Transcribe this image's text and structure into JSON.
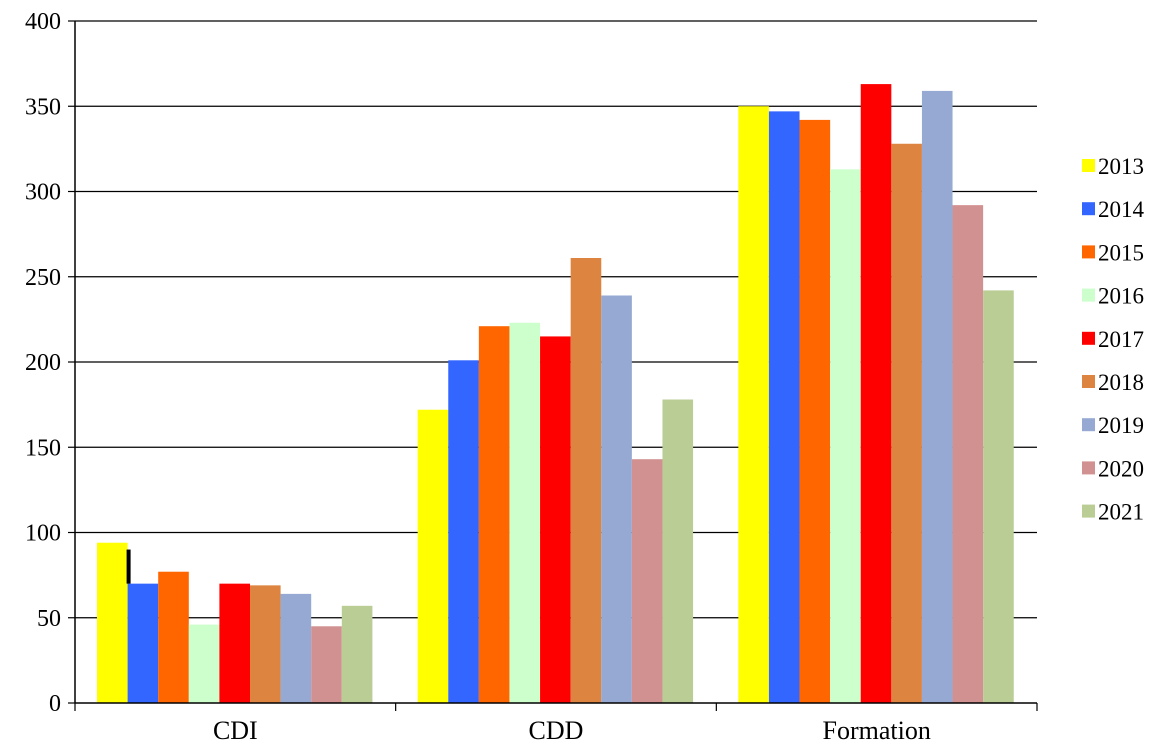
{
  "chart_data": {
    "type": "bar",
    "title": "",
    "xlabel": "",
    "ylabel": "",
    "categories": [
      "CDI",
      "CDD",
      "Formation"
    ],
    "ylim": [
      0,
      400
    ],
    "yticks": [
      0,
      50,
      100,
      150,
      200,
      250,
      300,
      350,
      400
    ],
    "grid": true,
    "legend_position": "right",
    "series": [
      {
        "name": "2013",
        "color": "#FFFF00",
        "values": [
          94,
          172,
          350
        ]
      },
      {
        "name": "2014",
        "color": "#3366FF",
        "values": [
          70,
          201,
          347
        ]
      },
      {
        "name": "2015",
        "color": "#FF6600",
        "values": [
          77,
          221,
          342
        ]
      },
      {
        "name": "2016",
        "color": "#CCFFCC",
        "values": [
          46,
          223,
          313
        ]
      },
      {
        "name": "2017",
        "color": "#FF0000",
        "values": [
          70,
          215,
          363
        ]
      },
      {
        "name": "2018",
        "color": "#DD8440",
        "values": [
          69,
          261,
          328
        ]
      },
      {
        "name": "2019",
        "color": "#95A9D2",
        "values": [
          64,
          239,
          359
        ]
      },
      {
        "name": "2020",
        "color": "#D19191",
        "values": [
          45,
          143,
          292
        ]
      },
      {
        "name": "2021",
        "color": "#BACD95",
        "values": [
          57,
          178,
          242
        ]
      }
    ]
  }
}
